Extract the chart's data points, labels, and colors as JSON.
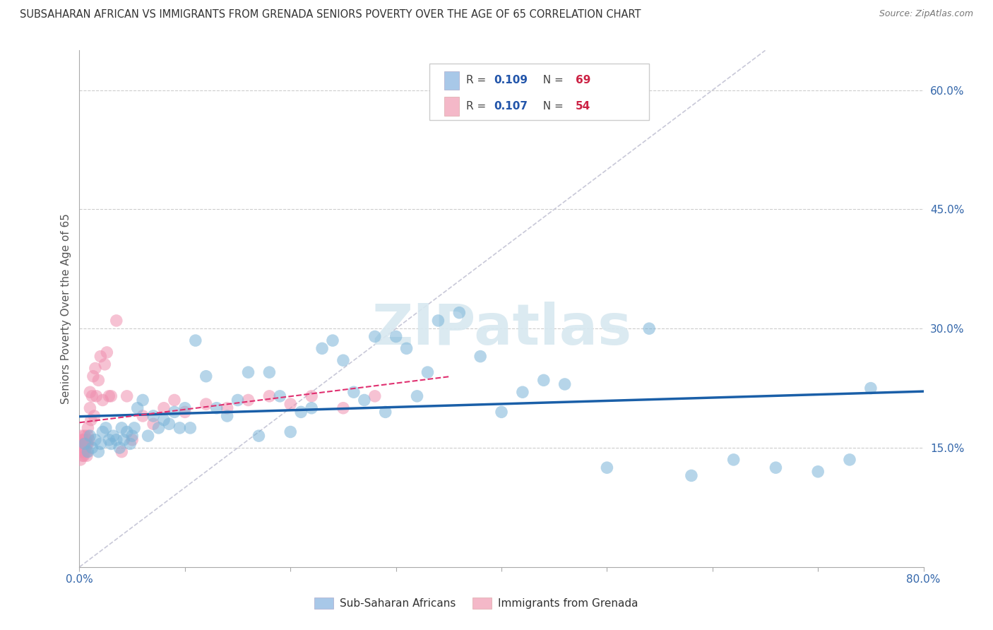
{
  "title": "SUBSAHARAN AFRICAN VS IMMIGRANTS FROM GRENADA SENIORS POVERTY OVER THE AGE OF 65 CORRELATION CHART",
  "source": "Source: ZipAtlas.com",
  "ylabel": "Seniors Poverty Over the Age of 65",
  "xlim": [
    0.0,
    0.8
  ],
  "ylim": [
    0.0,
    0.65
  ],
  "x_ticks": [
    0.0,
    0.1,
    0.2,
    0.3,
    0.4,
    0.5,
    0.6,
    0.7,
    0.8
  ],
  "y_ticks_right": [
    0.15,
    0.3,
    0.45,
    0.6
  ],
  "y_tick_labels_right": [
    "15.0%",
    "30.0%",
    "45.0%",
    "60.0%"
  ],
  "legend1_color": "#a8c8e8",
  "legend2_color": "#f4b8c8",
  "scatter1_color": "#7ab4d8",
  "scatter2_color": "#f090b0",
  "trendline1_color": "#1a5fa8",
  "trendline2_color": "#e03070",
  "diag_color": "#c8c8d8",
  "watermark_color": "#d8e8f0",
  "R1": 0.109,
  "N1": 69,
  "R2": 0.107,
  "N2": 54,
  "scatter1_x": [
    0.005,
    0.008,
    0.01,
    0.012,
    0.015,
    0.018,
    0.02,
    0.022,
    0.025,
    0.028,
    0.03,
    0.032,
    0.035,
    0.038,
    0.04,
    0.042,
    0.045,
    0.048,
    0.05,
    0.052,
    0.055,
    0.06,
    0.065,
    0.07,
    0.075,
    0.08,
    0.085,
    0.09,
    0.095,
    0.1,
    0.105,
    0.11,
    0.12,
    0.13,
    0.14,
    0.15,
    0.16,
    0.17,
    0.18,
    0.19,
    0.2,
    0.21,
    0.22,
    0.23,
    0.24,
    0.25,
    0.26,
    0.27,
    0.28,
    0.29,
    0.3,
    0.31,
    0.32,
    0.33,
    0.34,
    0.36,
    0.38,
    0.4,
    0.42,
    0.44,
    0.46,
    0.5,
    0.54,
    0.58,
    0.62,
    0.66,
    0.7,
    0.73,
    0.75
  ],
  "scatter1_y": [
    0.155,
    0.145,
    0.165,
    0.15,
    0.16,
    0.145,
    0.155,
    0.17,
    0.175,
    0.16,
    0.155,
    0.165,
    0.16,
    0.15,
    0.175,
    0.16,
    0.17,
    0.155,
    0.165,
    0.175,
    0.2,
    0.21,
    0.165,
    0.19,
    0.175,
    0.185,
    0.18,
    0.195,
    0.175,
    0.2,
    0.175,
    0.285,
    0.24,
    0.2,
    0.19,
    0.21,
    0.245,
    0.165,
    0.245,
    0.215,
    0.17,
    0.195,
    0.2,
    0.275,
    0.285,
    0.26,
    0.22,
    0.21,
    0.29,
    0.195,
    0.29,
    0.275,
    0.215,
    0.245,
    0.31,
    0.32,
    0.265,
    0.195,
    0.22,
    0.235,
    0.23,
    0.125,
    0.3,
    0.115,
    0.135,
    0.125,
    0.12,
    0.135,
    0.225
  ],
  "scatter2_x": [
    0.001,
    0.001,
    0.002,
    0.002,
    0.002,
    0.003,
    0.003,
    0.003,
    0.004,
    0.004,
    0.005,
    0.005,
    0.005,
    0.006,
    0.006,
    0.007,
    0.007,
    0.007,
    0.008,
    0.008,
    0.008,
    0.009,
    0.01,
    0.01,
    0.011,
    0.012,
    0.013,
    0.014,
    0.015,
    0.016,
    0.018,
    0.02,
    0.022,
    0.024,
    0.026,
    0.028,
    0.03,
    0.035,
    0.04,
    0.045,
    0.05,
    0.06,
    0.07,
    0.08,
    0.09,
    0.1,
    0.12,
    0.14,
    0.16,
    0.18,
    0.2,
    0.22,
    0.25,
    0.28
  ],
  "scatter2_y": [
    0.155,
    0.135,
    0.145,
    0.155,
    0.165,
    0.14,
    0.15,
    0.16,
    0.14,
    0.16,
    0.145,
    0.155,
    0.165,
    0.15,
    0.16,
    0.14,
    0.155,
    0.145,
    0.155,
    0.165,
    0.175,
    0.16,
    0.2,
    0.22,
    0.185,
    0.215,
    0.24,
    0.19,
    0.25,
    0.215,
    0.235,
    0.265,
    0.21,
    0.255,
    0.27,
    0.215,
    0.215,
    0.31,
    0.145,
    0.215,
    0.16,
    0.19,
    0.18,
    0.2,
    0.21,
    0.195,
    0.205,
    0.2,
    0.21,
    0.215,
    0.205,
    0.215,
    0.2,
    0.215
  ]
}
